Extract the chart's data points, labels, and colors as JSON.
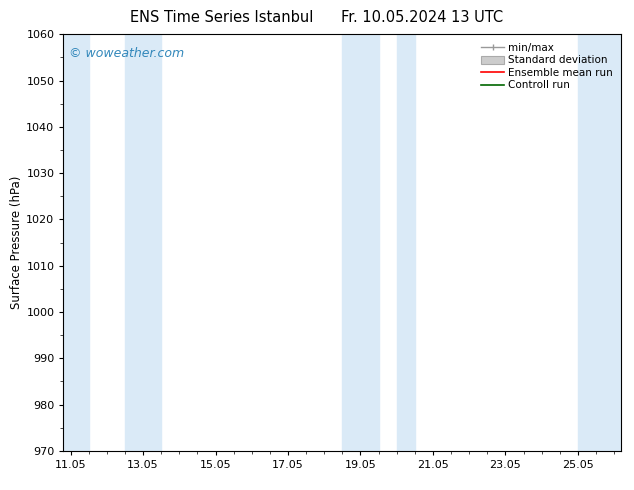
{
  "title1": "ENS Time Series Istanbul",
  "title2": "Fr. 10.05.2024 13 UTC",
  "ylabel": "Surface Pressure (hPa)",
  "ylim": [
    970,
    1060
  ],
  "yticks": [
    970,
    980,
    990,
    1000,
    1010,
    1020,
    1030,
    1040,
    1050,
    1060
  ],
  "xtick_labels": [
    "11.05",
    "13.05",
    "15.05",
    "17.05",
    "19.05",
    "21.05",
    "23.05",
    "25.05"
  ],
  "xtick_positions": [
    11.0,
    13.0,
    15.0,
    17.0,
    19.0,
    21.0,
    23.0,
    25.0
  ],
  "xlim": [
    10.8,
    26.2
  ],
  "shaded_bands": [
    {
      "xmin": 10.8,
      "xmax": 11.5
    },
    {
      "xmin": 12.5,
      "xmax": 13.5
    },
    {
      "xmin": 18.5,
      "xmax": 19.5
    },
    {
      "xmin": 20.0,
      "xmax": 20.5
    },
    {
      "xmin": 25.0,
      "xmax": 26.2
    }
  ],
  "band_color": "#daeaf7",
  "background_color": "#ffffff",
  "watermark_text": "© woweather.com",
  "watermark_color": "#3388bb",
  "legend_items": [
    {
      "label": "min/max",
      "color": "#999999"
    },
    {
      "label": "Standard deviation",
      "color": "#bbccdd"
    },
    {
      "label": "Ensemble mean run",
      "color": "#ff0000"
    },
    {
      "label": "Controll run",
      "color": "#006600"
    }
  ],
  "title_fontsize": 10.5,
  "axis_fontsize": 8.5,
  "tick_fontsize": 8.0,
  "legend_fontsize": 7.5
}
